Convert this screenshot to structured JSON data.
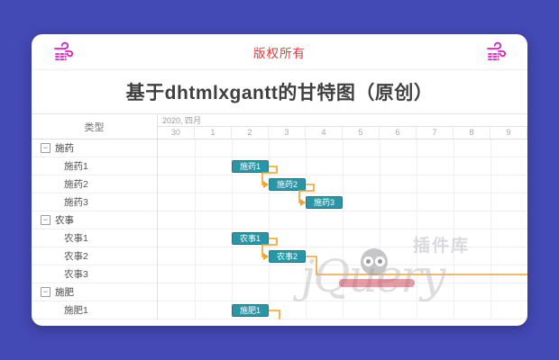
{
  "topbar": {
    "copyright": "版权所有",
    "left_icon": "wind-icon",
    "right_icon": "wind-icon",
    "icon_color": "#e319c5",
    "text_color": "#e23a3a"
  },
  "title": "基于dhtmlxgantt的甘特图（原创）",
  "chart_data": {
    "type": "gantt",
    "grid_header": "类型",
    "scale": {
      "month_label": "2020, 四月",
      "days": [
        "30",
        "1",
        "2",
        "3",
        "4",
        "5",
        "6",
        "7",
        "8",
        "9"
      ]
    },
    "rows": [
      {
        "label": "施药",
        "type": "project"
      },
      {
        "label": "施药1",
        "type": "task",
        "start": "2",
        "duration": 1
      },
      {
        "label": "施药2",
        "type": "task",
        "start": "3",
        "duration": 1
      },
      {
        "label": "施药3",
        "type": "task",
        "start": "4",
        "duration": 1
      },
      {
        "label": "农事",
        "type": "project"
      },
      {
        "label": "农事1",
        "type": "task",
        "start": "2",
        "duration": 1
      },
      {
        "label": "农事2",
        "type": "task",
        "start": "3",
        "duration": 1
      },
      {
        "label": "农事3",
        "type": "task"
      },
      {
        "label": "施肥",
        "type": "project"
      },
      {
        "label": "施肥1",
        "type": "task",
        "start": "2",
        "duration": 1
      }
    ],
    "links": [
      {
        "source": "施药1",
        "target": "施药2",
        "type": "finish_to_start"
      },
      {
        "source": "施药2",
        "target": "施药3",
        "type": "finish_to_start"
      },
      {
        "source": "农事1",
        "target": "农事2",
        "type": "finish_to_start"
      },
      {
        "source": "农事2",
        "target": null,
        "exit_row": "农事3",
        "type": "finish_to_start"
      },
      {
        "source": "施肥1",
        "target": null,
        "type": "finish_to_start"
      }
    ],
    "colors": {
      "bar": "#2a95a5",
      "link": "#f0a12e"
    }
  },
  "watermark": {
    "brand": "jQuery",
    "badge": "插件库"
  }
}
